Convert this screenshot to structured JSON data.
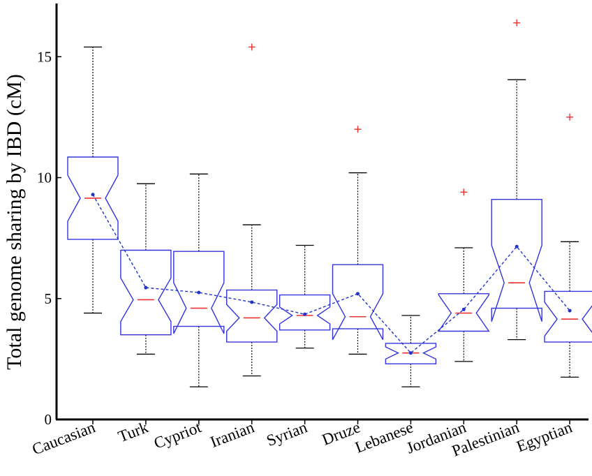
{
  "chart_data": {
    "type": "boxplot",
    "notched": true,
    "ylabel": "Total genome sharing by IBD (cM)",
    "xlabel": "",
    "ylim": [
      0,
      17.3
    ],
    "yticks": [
      0,
      5,
      10,
      15
    ],
    "ytick_labels": [
      "0",
      "5",
      "10",
      "15"
    ],
    "categories": [
      "Caucasian",
      "Turk",
      "Cypriot",
      "Iranian",
      "Syrian",
      "Druze",
      "Lebanese",
      "Jordanian",
      "Palestinian",
      "Egyptian"
    ],
    "boxes": [
      {
        "category": "Caucasian",
        "whisker_low": 4.4,
        "q1": 7.45,
        "median": 9.15,
        "q3": 10.85,
        "whisker_high": 15.4,
        "notch_low": 8.2,
        "notch_high": 10.1,
        "mean": 9.3,
        "outliers": []
      },
      {
        "category": "Turk",
        "whisker_low": 2.7,
        "q1": 3.5,
        "median": 4.95,
        "q3": 7.0,
        "whisker_high": 9.75,
        "notch_low": 4.05,
        "notch_high": 5.85,
        "mean": 5.45,
        "outliers": []
      },
      {
        "category": "Cypriot",
        "whisker_low": 1.35,
        "q1": 3.85,
        "median": 4.6,
        "q3": 6.95,
        "whisker_high": 10.15,
        "notch_low": 3.55,
        "notch_high": 5.65,
        "mean": 5.25,
        "outliers": []
      },
      {
        "category": "Iranian",
        "whisker_low": 1.8,
        "q1": 3.2,
        "median": 4.2,
        "q3": 5.35,
        "whisker_high": 8.05,
        "notch_low": 3.65,
        "notch_high": 4.75,
        "mean": 4.85,
        "outliers": [
          15.4
        ]
      },
      {
        "category": "Syrian",
        "whisker_low": 2.95,
        "q1": 3.7,
        "median": 4.3,
        "q3": 5.15,
        "whisker_high": 7.2,
        "notch_low": 3.95,
        "notch_high": 4.65,
        "mean": 4.35,
        "outliers": []
      },
      {
        "category": "Druze",
        "whisker_low": 2.7,
        "q1": 3.75,
        "median": 4.25,
        "q3": 6.4,
        "whisker_high": 10.2,
        "notch_low": 3.3,
        "notch_high": 5.2,
        "mean": 5.2,
        "outliers": [
          12.0
        ]
      },
      {
        "category": "Lebanese",
        "whisker_low": 1.35,
        "q1": 2.3,
        "median": 2.75,
        "q3": 3.15,
        "whisker_high": 4.3,
        "notch_low": 2.5,
        "notch_high": 3.0,
        "mean": 2.75,
        "outliers": []
      },
      {
        "category": "Jordanian",
        "whisker_low": 2.4,
        "q1": 3.65,
        "median": 4.4,
        "q3": 5.2,
        "whisker_high": 7.1,
        "notch_low": 3.65,
        "notch_high": 5.15,
        "mean": 4.55,
        "outliers": [
          9.4
        ]
      },
      {
        "category": "Palestinian",
        "whisker_low": 3.3,
        "q1": 4.6,
        "median": 5.65,
        "q3": 9.1,
        "whisker_high": 14.05,
        "notch_low": 4.05,
        "notch_high": 7.2,
        "mean": 7.15,
        "outliers": [
          16.4
        ]
      },
      {
        "category": "Egyptian",
        "whisker_low": 1.75,
        "q1": 3.2,
        "median": 4.15,
        "q3": 5.3,
        "whisker_high": 7.35,
        "notch_low": 3.45,
        "notch_high": 4.85,
        "mean": 4.5,
        "outliers": [
          12.5
        ]
      }
    ],
    "mean_line": {
      "style": "dashed",
      "marker": "dot"
    },
    "grid": false,
    "legend": "none",
    "colors": {
      "box": "#3333dd",
      "median": "#ee3333",
      "whisker": "#000000",
      "mean": "#2233cc",
      "outlier": "#ee3333",
      "axis": "#000000"
    }
  }
}
